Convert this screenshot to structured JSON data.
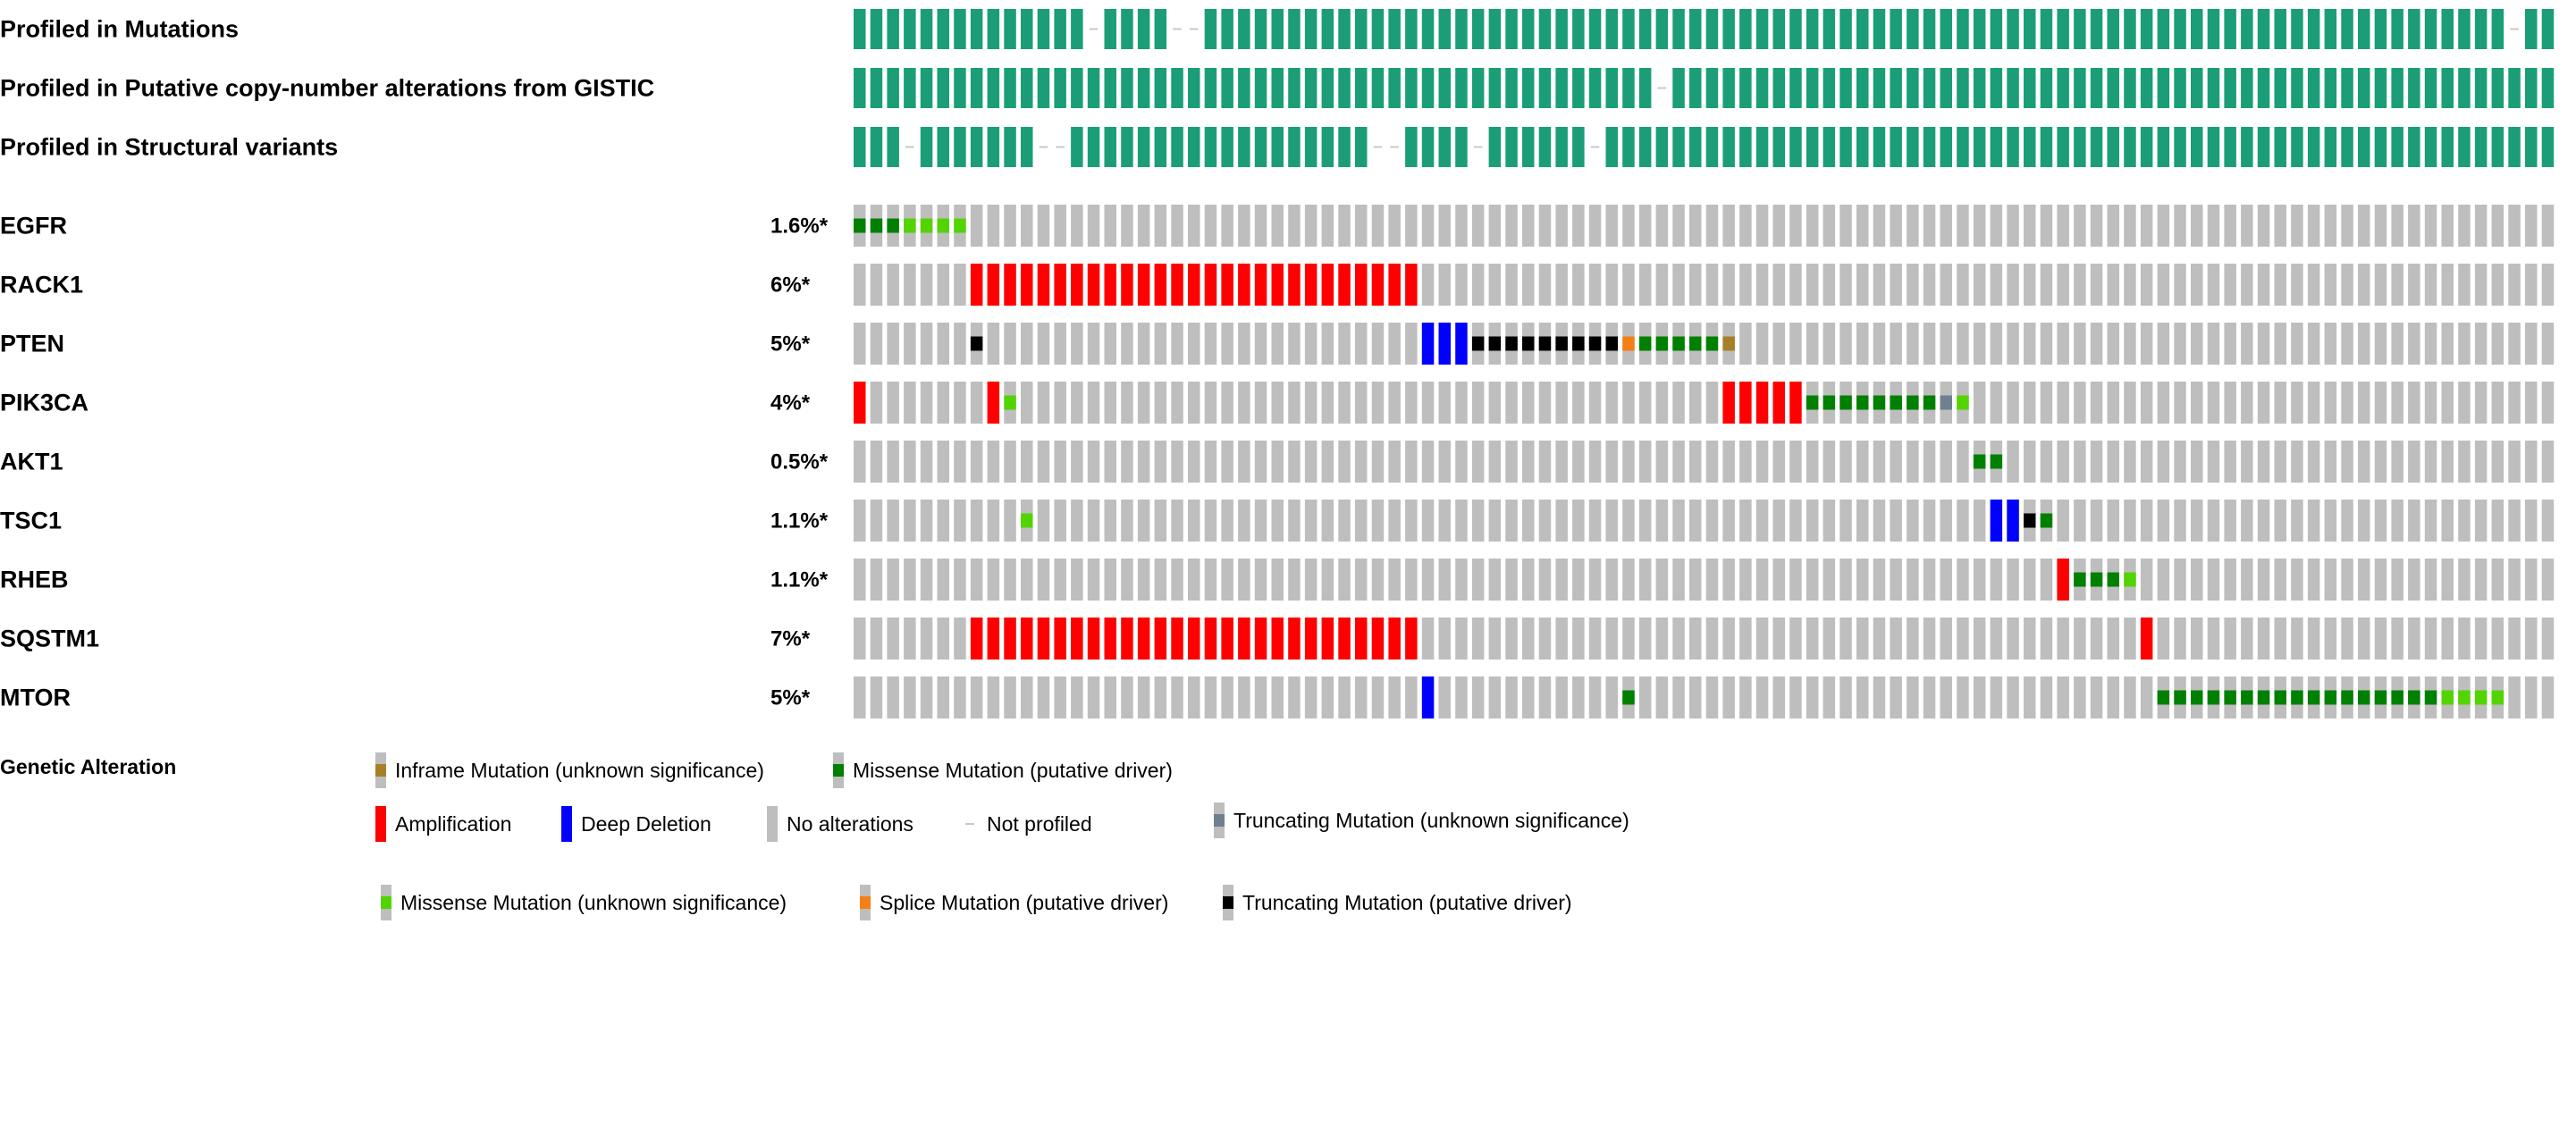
{
  "chart_data": {
    "type": "heatmap",
    "chart_kind": "oncoprint",
    "num_samples": 102,
    "profiled_tracks": [
      {
        "label": "Profiled in Mutations",
        "not_profiled": [
          14,
          19,
          20,
          99
        ]
      },
      {
        "label": "Profiled in Putative copy-number alterations from GISTIC",
        "not_profiled": [
          48
        ]
      },
      {
        "label": "Profiled in Structural variants",
        "not_profiled": [
          3,
          11,
          12,
          31,
          32,
          37,
          44
        ]
      }
    ],
    "gene_tracks": [
      {
        "gene": "EGFR",
        "percent": "1.6%*",
        "alterations": [
          {
            "from": 0,
            "to": 2,
            "type": "missense_driver"
          },
          {
            "from": 3,
            "to": 6,
            "type": "missense_unknown"
          }
        ]
      },
      {
        "gene": "RACK1",
        "percent": "6%*",
        "alterations": [
          {
            "from": 7,
            "to": 33,
            "type": "amplification"
          }
        ]
      },
      {
        "gene": "PTEN",
        "percent": "5%*",
        "alterations": [
          {
            "from": 7,
            "to": 7,
            "type": "truncating_driver"
          },
          {
            "from": 34,
            "to": 36,
            "type": "deep_deletion"
          },
          {
            "from": 37,
            "to": 45,
            "type": "truncating_driver"
          },
          {
            "from": 46,
            "to": 46,
            "type": "splice_driver"
          },
          {
            "from": 47,
            "to": 51,
            "type": "missense_driver"
          },
          {
            "from": 52,
            "to": 52,
            "type": "inframe_unknown"
          }
        ]
      },
      {
        "gene": "PIK3CA",
        "percent": "4%*",
        "alterations": [
          {
            "from": 0,
            "to": 0,
            "type": "amplification"
          },
          {
            "from": 8,
            "to": 8,
            "type": "amplification"
          },
          {
            "from": 9,
            "to": 9,
            "type": "missense_unknown"
          },
          {
            "from": 52,
            "to": 56,
            "type": "amplification"
          },
          {
            "from": 57,
            "to": 64,
            "type": "missense_driver"
          },
          {
            "from": 65,
            "to": 65,
            "type": "truncating_unknown"
          },
          {
            "from": 66,
            "to": 66,
            "type": "missense_unknown"
          }
        ]
      },
      {
        "gene": "AKT1",
        "percent": "0.5%*",
        "alterations": [
          {
            "from": 67,
            "to": 68,
            "type": "missense_driver"
          }
        ]
      },
      {
        "gene": "TSC1",
        "percent": "1.1%*",
        "alterations": [
          {
            "from": 10,
            "to": 10,
            "type": "missense_unknown"
          },
          {
            "from": 68,
            "to": 69,
            "type": "deep_deletion"
          },
          {
            "from": 70,
            "to": 70,
            "type": "truncating_driver"
          },
          {
            "from": 71,
            "to": 71,
            "type": "missense_driver"
          }
        ]
      },
      {
        "gene": "RHEB",
        "percent": "1.1%*",
        "alterations": [
          {
            "from": 72,
            "to": 72,
            "type": "amplification"
          },
          {
            "from": 73,
            "to": 75,
            "type": "missense_driver"
          },
          {
            "from": 76,
            "to": 76,
            "type": "missense_unknown"
          }
        ]
      },
      {
        "gene": "SQSTM1",
        "percent": "7%*",
        "alterations": [
          {
            "from": 7,
            "to": 33,
            "type": "amplification"
          },
          {
            "from": 77,
            "to": 77,
            "type": "amplification"
          }
        ]
      },
      {
        "gene": "MTOR",
        "percent": "5%*",
        "alterations": [
          {
            "from": 34,
            "to": 34,
            "type": "deep_deletion"
          },
          {
            "from": 46,
            "to": 46,
            "type": "missense_driver"
          },
          {
            "from": 78,
            "to": 94,
            "type": "missense_driver"
          },
          {
            "from": 95,
            "to": 98,
            "type": "missense_unknown"
          }
        ]
      }
    ],
    "legend": {
      "title": "Genetic Alteration",
      "items": [
        {
          "key": "inframe_unknown",
          "label": "Inframe Mutation (unknown significance)"
        },
        {
          "key": "missense_driver",
          "label": "Missense Mutation (putative driver)"
        },
        {
          "key": "amplification",
          "label": "Amplification"
        },
        {
          "key": "deep_deletion",
          "label": "Deep Deletion"
        },
        {
          "key": "no_alteration",
          "label": "No alterations"
        },
        {
          "key": "not_profiled",
          "label": "Not profiled"
        },
        {
          "key": "truncating_unknown",
          "label": "Truncating Mutation (unknown significance)"
        },
        {
          "key": "missense_unknown",
          "label": "Missense Mutation (unknown significance)"
        },
        {
          "key": "splice_driver",
          "label": "Splice Mutation (putative driver)"
        },
        {
          "key": "truncating_driver",
          "label": "Truncating Mutation (putative driver)"
        }
      ]
    },
    "colors": {
      "profiled": "#1b9e77",
      "no_alteration": "#bebebe",
      "not_profiled": "#c8c8c8",
      "amplification": "#ff0000",
      "deep_deletion": "#0000ff",
      "missense_driver": "#008000",
      "missense_unknown": "#53d400",
      "truncating_driver": "#000000",
      "truncating_unknown": "#708090",
      "inframe_unknown": "#a68028",
      "splice_driver": "#f57f17"
    }
  }
}
